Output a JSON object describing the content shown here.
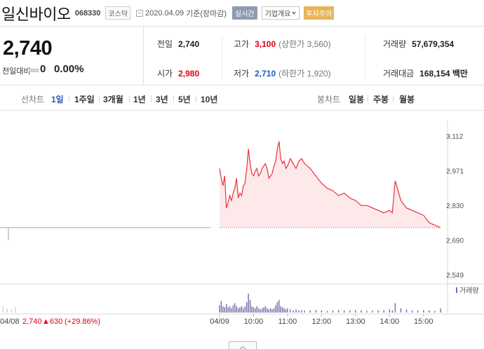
{
  "header": {
    "name": "일신바이오",
    "code": "068330",
    "market": "코스닥",
    "asof_date": "2020.04.09",
    "asof_suffix": "기준(장마감)",
    "realtime_label": "실시간",
    "company_label": "기업개요",
    "warning_label": "투자주의"
  },
  "quote": {
    "price": "2,740",
    "change_label": "전일대비",
    "change_value": "0",
    "change_rate": "0.00%",
    "prev_label": "전일",
    "prev_value": "2,740",
    "open_label": "시가",
    "open_value": "2,980",
    "high_label": "고가",
    "high_value": "3,100",
    "high_note": "(상한가 3,560)",
    "low_label": "저가",
    "low_value": "2,710",
    "low_note": "(하한가 1,920)",
    "volume_label": "거래량",
    "volume_value": "57,679,354",
    "amount_label": "거래대금",
    "amount_value": "168,154 백만"
  },
  "periods": {
    "line_label": "선차트",
    "line_items": [
      "1일",
      "1주일",
      "3개월",
      "1년",
      "3년",
      "5년",
      "10년"
    ],
    "active": "1일",
    "candle_label": "봉차트",
    "candle_items": [
      "일봉",
      "주봉",
      "월봉"
    ]
  },
  "chart_data": {
    "type": "line",
    "y_ticks": [
      "3,112",
      "2,971",
      "2,830",
      "2,690",
      "2,549"
    ],
    "ylim": [
      2549,
      3112
    ],
    "reference_price": 2740,
    "x_ticks": [
      "04/09",
      "10:00",
      "11:00",
      "12:00",
      "13:00",
      "14:00",
      "15:00"
    ],
    "volume_label": "거래량",
    "prev_day_label": "04/08",
    "prev_day_close": "2,740",
    "prev_day_change": "▲630",
    "prev_day_rate": "(+29.86%)",
    "prev_day_price": 2740,
    "series": [
      {
        "x": [
          "09:00",
          "09:03",
          "09:06",
          "09:09",
          "09:12",
          "09:15",
          "09:18",
          "09:21",
          "09:24",
          "09:27",
          "09:30",
          "09:33",
          "09:36",
          "09:39",
          "09:42",
          "09:45",
          "09:48",
          "09:51",
          "09:54",
          "09:57",
          "10:00",
          "10:03",
          "10:06",
          "10:09",
          "10:12",
          "10:15",
          "10:18",
          "10:21",
          "10:24",
          "10:27",
          "10:30",
          "10:33",
          "10:36",
          "10:39",
          "10:42",
          "10:45",
          "10:48",
          "10:51",
          "10:54",
          "10:57",
          "11:00",
          "11:05",
          "11:10",
          "11:15",
          "11:20",
          "11:25",
          "11:30",
          "11:40",
          "11:50",
          "12:00",
          "12:10",
          "12:20",
          "12:30",
          "12:40",
          "12:50",
          "13:00",
          "13:10",
          "13:20",
          "13:30",
          "13:40",
          "13:50",
          "14:00",
          "14:05",
          "14:10",
          "14:20",
          "14:30",
          "14:40",
          "14:50",
          "15:00",
          "15:10",
          "15:20",
          "15:30"
        ],
        "values": [
          2980,
          2940,
          2910,
          2950,
          2820,
          2840,
          2870,
          2850,
          2880,
          2900,
          2940,
          2860,
          2880,
          2870,
          2910,
          2920,
          2980,
          3060,
          3000,
          2960,
          2950,
          2970,
          2980,
          2950,
          2960,
          2980,
          2990,
          3000,
          2980,
          2940,
          2950,
          2960,
          2990,
          3010,
          3060,
          3090,
          3020,
          3000,
          3010,
          2980,
          2990,
          3020,
          3000,
          2980,
          3010,
          3020,
          3000,
          2980,
          2950,
          2920,
          2900,
          2890,
          2870,
          2880,
          2860,
          2850,
          2830,
          2830,
          2820,
          2810,
          2800,
          2810,
          2800,
          2930,
          2850,
          2820,
          2810,
          2800,
          2790,
          2760,
          2750,
          2740
        ]
      }
    ],
    "volume": [
      0.35,
      0.55,
      0.3,
      0.25,
      0.4,
      0.25,
      0.3,
      0.2,
      0.35,
      0.45,
      0.3,
      0.2,
      0.25,
      0.3,
      0.2,
      0.3,
      0.5,
      0.9,
      0.6,
      0.3,
      0.25,
      0.2,
      0.3,
      0.2,
      0.15,
      0.2,
      0.25,
      0.3,
      0.2,
      0.15,
      0.2,
      0.15,
      0.2,
      0.35,
      0.5,
      0.6,
      0.3,
      0.25,
      0.2,
      0.15,
      0.2,
      0.15,
      0.1,
      0.15,
      0.1,
      0.12,
      0.1,
      0.1,
      0.12,
      0.1,
      0.08,
      0.1,
      0.12,
      0.1,
      0.1,
      0.12,
      0.1,
      0.08,
      0.1,
      0.1,
      0.12,
      0.15,
      0.1,
      0.45,
      0.2,
      0.15,
      0.1,
      0.1,
      0.12,
      0.1,
      0.08,
      0.2
    ]
  },
  "colors": {
    "up": "#e0001a",
    "down": "#1c5bc8",
    "line": "#e8323c",
    "fill": "#fde9ea",
    "volume": "#7a6aa6"
  }
}
